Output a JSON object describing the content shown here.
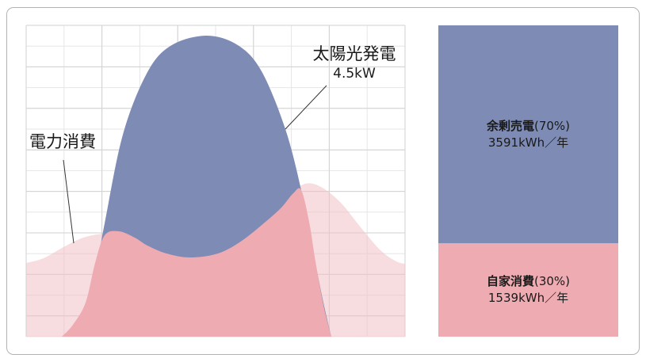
{
  "chart_data": [
    {
      "type": "area",
      "title": "",
      "xlabel": "",
      "ylabel": "",
      "grid": true,
      "series": [
        {
          "name": "電力消費",
          "color": "#f0bfc6",
          "opacity": 0.55
        },
        {
          "name": "太陽光発電",
          "color": "#7d8bb5",
          "peak": "4.5kW"
        },
        {
          "name": "自家消費",
          "color": "#efabb2"
        }
      ],
      "annotations": {
        "solar_label": "太陽光発電",
        "solar_peak": "4.5kW",
        "consumption_label": "電力消費"
      }
    },
    {
      "type": "bar",
      "stacked": true,
      "series": [
        {
          "name": "余剰売電",
          "percent_label": "(70%)",
          "value_label": "3591kWh／年",
          "value": 3591,
          "percent": 70,
          "color": "#7d8bb5"
        },
        {
          "name": "自家消費",
          "percent_label": "(30%)",
          "value_label": "1539kWh／年",
          "value": 1539,
          "percent": 30,
          "color": "#efabb2"
        }
      ]
    }
  ]
}
